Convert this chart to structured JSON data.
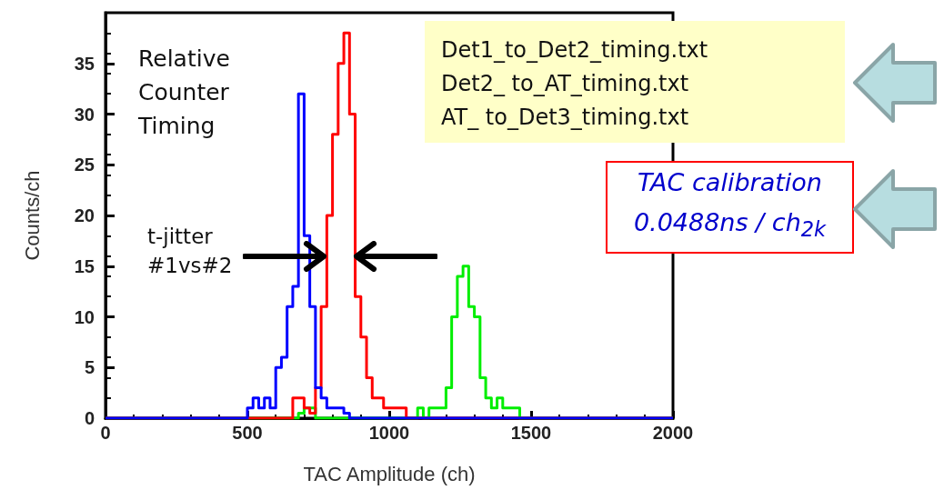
{
  "chart_data": {
    "type": "step",
    "xlabel": "TAC Amplitude (ch)",
    "ylabel": "Counts/ch",
    "xlim": [
      0,
      2000
    ],
    "xticks": [
      0,
      500,
      1000,
      1500,
      2000
    ],
    "ylim": [
      0,
      40
    ],
    "yticks": [
      0,
      5,
      10,
      15,
      20,
      25,
      30,
      35
    ],
    "grid": false,
    "marker": "none",
    "line_style": "solid",
    "series": [
      {
        "color": "#00ee00",
        "x": [
          0,
          680,
          700,
          720,
          740,
          1080,
          1100,
          1120,
          1140,
          1160,
          1180,
          1200,
          1220,
          1240,
          1260,
          1280,
          1300,
          1320,
          1340,
          1360,
          1380,
          1400,
          1420,
          1440,
          1460,
          2000
        ],
        "values": [
          0,
          0.5,
          1,
          1,
          0,
          0,
          1,
          0,
          1,
          1,
          1,
          3,
          10,
          14,
          15,
          11,
          10,
          4,
          2,
          1,
          2,
          1,
          1,
          1,
          0,
          0
        ]
      },
      {
        "color": "#ff0000",
        "x": [
          0,
          660,
          680,
          700,
          720,
          740,
          760,
          780,
          800,
          820,
          840,
          860,
          880,
          900,
          920,
          940,
          960,
          980,
          1000,
          1020,
          1040,
          1060,
          2000
        ],
        "values": [
          0,
          2,
          2,
          1,
          0.5,
          3,
          11,
          20,
          28,
          35,
          38,
          30,
          12,
          8,
          4,
          2,
          2,
          1,
          1,
          1,
          1,
          0,
          0
        ]
      },
      {
        "color": "#0000ff",
        "x": [
          0,
          500,
          520,
          540,
          560,
          580,
          600,
          620,
          640,
          660,
          680,
          700,
          720,
          740,
          760,
          780,
          800,
          820,
          840,
          860,
          2000
        ],
        "values": [
          0,
          1,
          2,
          1,
          2,
          1,
          5,
          6,
          11,
          13,
          32,
          18,
          11,
          3,
          2,
          1,
          1,
          1,
          0.5,
          0,
          0
        ]
      }
    ],
    "annotations": [
      "Relative Counter Timing",
      {
        "text": "t-jitter #1vs#2",
        "x": 780,
        "y": 16
      },
      "Det1_to_Det2_timing.txt",
      "Det2_ to_AT_timing.txt",
      "AT_ to_Det3_timing.txt",
      "TAC calibration",
      "0.0488ns / ch$_{2k}$"
    ]
  }
}
